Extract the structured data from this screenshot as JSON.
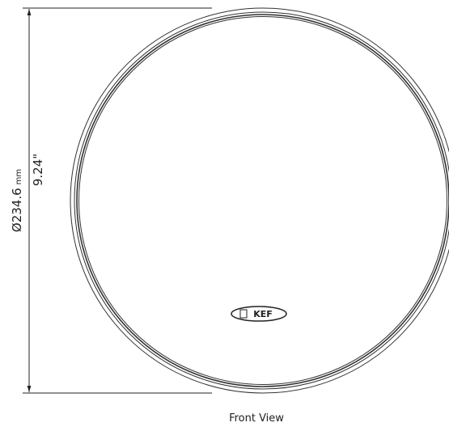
{
  "dimension": {
    "diameter_label": "Ø234.6",
    "unit": "mm",
    "inches_label": "9.24\""
  },
  "logo": "KEF",
  "caption": "Front View"
}
